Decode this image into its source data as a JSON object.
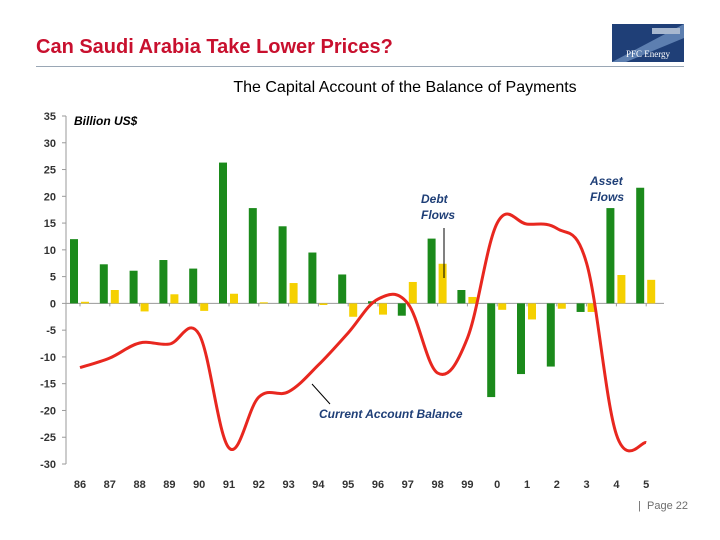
{
  "slide": {
    "title": "Can Saudi Arabia Take Lower Prices?",
    "logo_text": "PFC Energy",
    "page_label": "Page 22",
    "footer_separator": "|"
  },
  "colors": {
    "title": "#c8102e",
    "asset_flows": "#1b8a1b",
    "debt_flows": "#f5d000",
    "current_account": "#e8271f",
    "annotation": "#1f3f77"
  },
  "chart_data": {
    "type": "bar",
    "title": "The Capital Account of the Balance of Payments",
    "ylabel": "Billion US$",
    "ylim": [
      -30,
      35
    ],
    "yticks": [
      35,
      30,
      25,
      20,
      15,
      10,
      5,
      0,
      -5,
      -10,
      -15,
      -20,
      -25,
      -30
    ],
    "categories": [
      "86",
      "87",
      "88",
      "89",
      "90",
      "91",
      "92",
      "93",
      "94",
      "95",
      "96",
      "97",
      "98",
      "99",
      "0",
      "1",
      "2",
      "3",
      "4",
      "5"
    ],
    "series": [
      {
        "name": "Asset Flows",
        "type": "bar",
        "values": [
          12,
          7.3,
          6.1,
          8.1,
          6.5,
          26.3,
          17.8,
          14.4,
          9.5,
          5.4,
          0.4,
          -2.3,
          12.1,
          2.5,
          -17.5,
          -13.2,
          -11.8,
          -1.6,
          17.8,
          21.6
        ]
      },
      {
        "name": "Debt Flows",
        "type": "bar",
        "values": [
          0.3,
          2.5,
          -1.5,
          1.7,
          -1.4,
          1.8,
          0.2,
          3.8,
          -0.3,
          -2.5,
          -2.1,
          4,
          7.4,
          1.2,
          -1.2,
          -3,
          -1,
          -1.6,
          5.3,
          4.4
        ]
      },
      {
        "name": "Current Account Balance",
        "type": "line",
        "values": [
          -12,
          -10.2,
          -7.4,
          -7.6,
          -5.8,
          -27,
          -17.5,
          -16.5,
          -11.5,
          -5.5,
          0.8,
          0,
          -13,
          -6.5,
          15,
          14.8,
          14,
          7.5,
          -24.5,
          -26
        ]
      }
    ],
    "annotations": [
      {
        "text_lines": [
          "Debt",
          "Flows"
        ],
        "series": "Debt Flows"
      },
      {
        "text_lines": [
          "Asset",
          "Flows"
        ],
        "series": "Asset Flows"
      },
      {
        "text_lines": [
          "Current Account Balance"
        ],
        "series": "Current Account Balance"
      }
    ],
    "grid": false,
    "legend": "none"
  }
}
